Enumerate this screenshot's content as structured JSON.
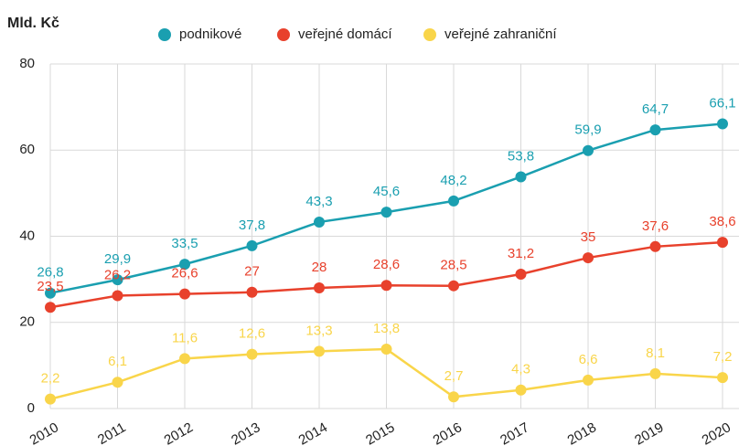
{
  "chart_data": {
    "type": "line",
    "title": "Mld. Kč",
    "categories": [
      "2010",
      "2011",
      "2012",
      "2013",
      "2014",
      "2015",
      "2016",
      "2017",
      "2018",
      "2019",
      "2020"
    ],
    "series": [
      {
        "name": "podnikové",
        "color": "#1a9fb0",
        "values": [
          26.8,
          29.9,
          33.5,
          37.8,
          43.3,
          45.6,
          48.2,
          53.8,
          59.9,
          64.7,
          66.1
        ],
        "value_labels": [
          "26,8",
          "29,9",
          "33,5",
          "37,8",
          "43,3",
          "45,6",
          "48,2",
          "53,8",
          "59,9",
          "64,7",
          "66,1"
        ]
      },
      {
        "name": "veřejné domácí",
        "color": "#e8412c",
        "values": [
          23.5,
          26.2,
          26.6,
          27,
          28,
          28.6,
          28.5,
          31.2,
          35,
          37.6,
          38.6
        ],
        "value_labels": [
          "23,5",
          "26,2",
          "26,6",
          "27",
          "28",
          "28,6",
          "28,5",
          "31,2",
          "35",
          "37,6",
          "38,6"
        ]
      },
      {
        "name": "veřejné zahraniční",
        "color": "#f9d54a",
        "values": [
          2.2,
          6.1,
          11.6,
          12.6,
          13.3,
          13.8,
          2.7,
          4.3,
          6.6,
          8.1,
          7.2
        ],
        "value_labels": [
          "2,2",
          "6,1",
          "11,6",
          "12,6",
          "13,3",
          "13,8",
          "2,7",
          "4,3",
          "6,6",
          "8,1",
          "7,2"
        ]
      }
    ],
    "ylim": [
      0,
      80
    ],
    "yticks": [
      0,
      20,
      40,
      60,
      80
    ],
    "grid": true
  }
}
